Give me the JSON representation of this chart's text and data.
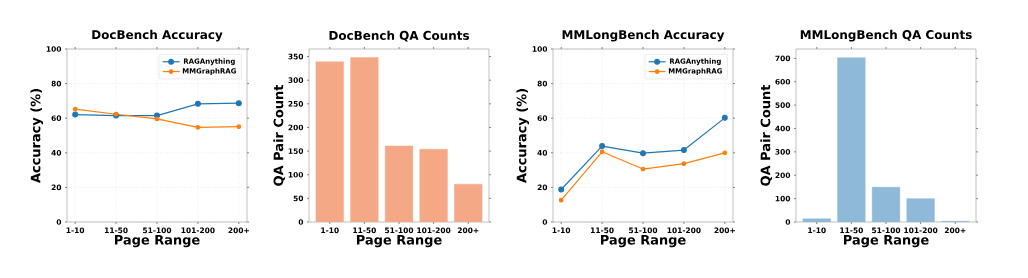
{
  "chart_data": [
    {
      "type": "line",
      "title": "DocBench Accuracy",
      "xlabel": "Page Range",
      "ylabel": "Accuracy (%)",
      "categories": [
        "1-10",
        "11-50",
        "51-100",
        "101-200",
        "200+"
      ],
      "series": [
        {
          "name": "RAGAnything",
          "color": "#1f77b4",
          "values": [
            62.1,
            61.5,
            61.5,
            68.3,
            68.7
          ]
        },
        {
          "name": "MMGraphRAG",
          "color": "#ff7f0e",
          "values": [
            65.2,
            62.3,
            59.6,
            54.7,
            55.1
          ]
        }
      ],
      "ylim": [
        0,
        100
      ],
      "yticks": [
        0,
        20,
        40,
        60,
        80,
        100
      ],
      "grid": true,
      "legend": "top right",
      "marker": "circle"
    },
    {
      "type": "bar",
      "title": "DocBench QA Counts",
      "xlabel": "Page Range",
      "ylabel": "QA Pair Count",
      "categories": [
        "1-10",
        "11-50",
        "51-100",
        "101-200",
        "200+"
      ],
      "values": [
        339,
        348,
        161,
        154,
        80
      ],
      "color": "#f4a886",
      "ylim": [
        0,
        366
      ],
      "yticks": [
        0,
        50,
        100,
        150,
        200,
        250,
        300,
        350
      ]
    },
    {
      "type": "line",
      "title": "MMLongBench Accuracy",
      "xlabel": "Page Range",
      "ylabel": "Accuracy (%)",
      "categories": [
        "1-10",
        "11-50",
        "51-100",
        "101-200",
        "200+"
      ],
      "series": [
        {
          "name": "RAGAnything",
          "color": "#1f77b4",
          "values": [
            18.8,
            43.9,
            39.8,
            41.6,
            60.2
          ]
        },
        {
          "name": "MMGraphRAG",
          "color": "#ff7f0e",
          "values": [
            12.6,
            40.6,
            30.6,
            33.7,
            40.0
          ]
        }
      ],
      "ylim": [
        0,
        100
      ],
      "yticks": [
        0,
        20,
        40,
        60,
        80,
        100
      ],
      "grid": true,
      "legend": "top right",
      "marker": "circle"
    },
    {
      "type": "bar",
      "title": "MMLongBench QA Counts",
      "xlabel": "Page Range",
      "ylabel": "QA Pair Count",
      "categories": [
        "1-10",
        "11-50",
        "51-100",
        "101-200",
        "200+"
      ],
      "values": [
        14,
        703,
        149,
        100,
        3
      ],
      "color": "#8fb9d8",
      "ylim": [
        0,
        740
      ],
      "yticks": [
        0,
        100,
        200,
        300,
        400,
        500,
        600,
        700
      ]
    }
  ]
}
